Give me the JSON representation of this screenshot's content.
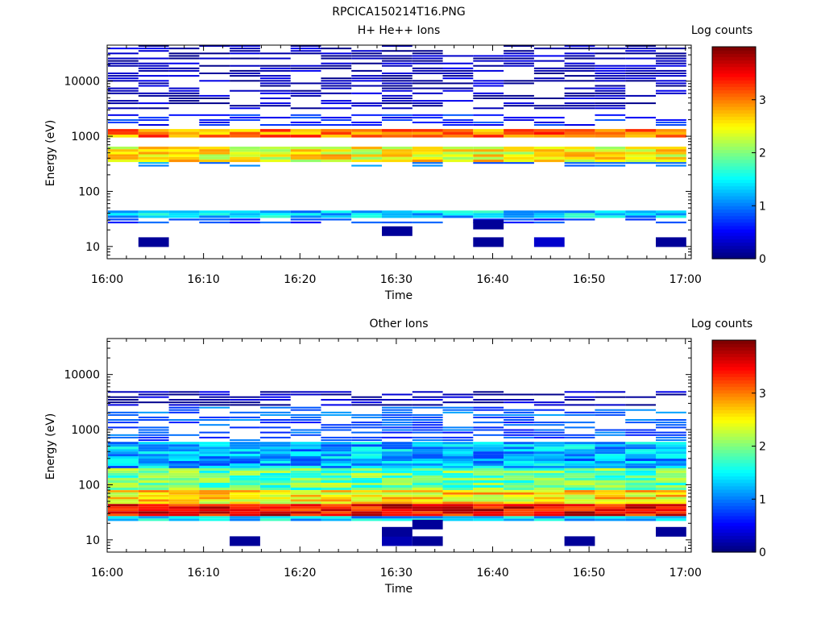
{
  "figure_title": "RPCICA150214T16.PNG",
  "chart_data": [
    {
      "type": "heatmap",
      "title": "H+ He++ Ions",
      "xlabel": "Time",
      "ylabel": "Energy (eV)",
      "colorbar_label": "Log counts",
      "x_ticks": [
        "16:00",
        "16:10",
        "16:20",
        "16:30",
        "16:40",
        "16:50",
        "17:00"
      ],
      "x_range": [
        "16:00",
        "17:00"
      ],
      "y_scale": "log",
      "y_range": [
        6,
        45000
      ],
      "y_ticks": [
        10,
        100,
        1000,
        10000
      ],
      "y_tick_labels": [
        "10",
        "100",
        "1000",
        "10000"
      ],
      "color_range": [
        0,
        4
      ],
      "colorbar_ticks": [
        0,
        1,
        2,
        3
      ],
      "colorbar_tick_labels": [
        "0",
        "1",
        "2",
        "3"
      ],
      "colormap": "jet",
      "time_bins": 19,
      "bands": [
        {
          "energy_range": [
            25,
            32
          ],
          "log_counts": 0.7
        },
        {
          "energy_range": [
            33,
            45
          ],
          "log_counts": 1.3
        },
        {
          "energy_range": [
            270,
            340
          ],
          "log_counts": 1.0
        },
        {
          "energy_range": [
            340,
            650
          ],
          "log_counts": 2.5
        },
        {
          "energy_range": [
            950,
            1350
          ],
          "log_counts": 3.0
        },
        {
          "energy_range": [
            1500,
            2500
          ],
          "log_counts": 0.6
        },
        {
          "energy_range": [
            3000,
            45000
          ],
          "log_counts": 0.2
        }
      ],
      "isolated_cells": [
        {
          "time": "16:05",
          "energy": 12,
          "log_counts": 0.1
        },
        {
          "time": "16:30",
          "energy": 19,
          "log_counts": 0.1
        },
        {
          "time": "16:40",
          "energy": 12,
          "log_counts": 0.1
        },
        {
          "time": "16:40",
          "energy": 25,
          "log_counts": 0.1
        },
        {
          "time": "16:47",
          "energy": 12,
          "log_counts": 0.3
        },
        {
          "time": "16:57",
          "energy": 12,
          "log_counts": 0.1
        }
      ]
    },
    {
      "type": "heatmap",
      "title": "Other Ions",
      "xlabel": "Time",
      "ylabel": "Energy (eV)",
      "colorbar_label": "Log counts",
      "x_ticks": [
        "16:00",
        "16:10",
        "16:20",
        "16:30",
        "16:40",
        "16:50",
        "17:00"
      ],
      "x_range": [
        "16:00",
        "17:00"
      ],
      "y_scale": "log",
      "y_range": [
        6,
        45000
      ],
      "y_ticks": [
        10,
        100,
        1000,
        10000
      ],
      "y_tick_labels": [
        "10",
        "100",
        "1000",
        "10000"
      ],
      "color_range": [
        0,
        4
      ],
      "colorbar_ticks": [
        0,
        1,
        2,
        3
      ],
      "colorbar_tick_labels": [
        "0",
        "1",
        "2",
        "3"
      ],
      "colormap": "jet",
      "time_bins": 19,
      "bands": [
        {
          "energy_range": [
            22,
            27
          ],
          "log_counts": 1.3
        },
        {
          "energy_range": [
            27,
            45
          ],
          "log_counts": 3.5
        },
        {
          "energy_range": [
            45,
            80
          ],
          "log_counts": 2.6
        },
        {
          "energy_range": [
            80,
            200
          ],
          "log_counts": 1.9
        },
        {
          "energy_range": [
            200,
            600
          ],
          "log_counts": 1.2
        },
        {
          "energy_range": [
            600,
            1400
          ],
          "log_counts": 0.8
        },
        {
          "energy_range": [
            1400,
            2600
          ],
          "log_counts": 0.9
        },
        {
          "energy_range": [
            2600,
            5000
          ],
          "log_counts": 0.2
        }
      ],
      "isolated_cells": [
        {
          "time": "16:15",
          "energy": 9.5,
          "log_counts": 0.1
        },
        {
          "time": "16:30",
          "energy": 9.5,
          "log_counts": 0.2
        },
        {
          "time": "16:30",
          "energy": 14,
          "log_counts": 0.1
        },
        {
          "time": "16:33",
          "energy": 9.5,
          "log_counts": 0.1
        },
        {
          "time": "16:33",
          "energy": 19,
          "log_counts": 0.1
        },
        {
          "time": "16:50",
          "energy": 9.5,
          "log_counts": 0.1
        },
        {
          "time": "16:57",
          "energy": 14,
          "log_counts": 0.1
        }
      ]
    }
  ]
}
